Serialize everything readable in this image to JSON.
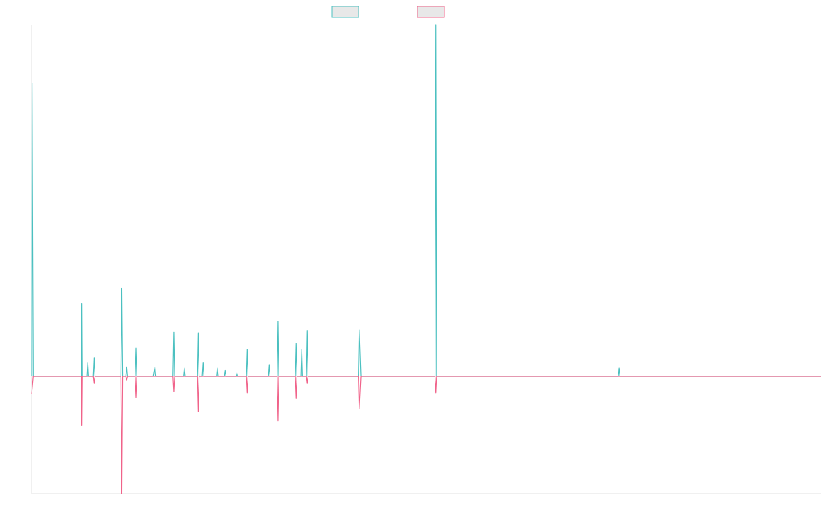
{
  "chart_data": {
    "type": "line",
    "title": "",
    "xlabel": "",
    "ylabel": "",
    "xlim": [
      0,
      1000
    ],
    "ylim": [
      -100,
      300
    ],
    "grid": false,
    "legend_position": "top-center",
    "series": [
      {
        "color": "#4bc0c0",
        "swatch_fill": "#e8e8e8",
        "points": [
          [
            0,
            0
          ],
          [
            0.5,
            250
          ],
          [
            2,
            0
          ],
          [
            25,
            0
          ],
          [
            63,
            0
          ],
          [
            63.5,
            62
          ],
          [
            64,
            0
          ],
          [
            70,
            0
          ],
          [
            71,
            12
          ],
          [
            72,
            0
          ],
          [
            78,
            0
          ],
          [
            79,
            16
          ],
          [
            80,
            0
          ],
          [
            113,
            0
          ],
          [
            114,
            75
          ],
          [
            115,
            0
          ],
          [
            119,
            0
          ],
          [
            120,
            8
          ],
          [
            121,
            0
          ],
          [
            131,
            0
          ],
          [
            132,
            24
          ],
          [
            133,
            0
          ],
          [
            154,
            0
          ],
          [
            156,
            8
          ],
          [
            157,
            0
          ],
          [
            179,
            0
          ],
          [
            180,
            38
          ],
          [
            181,
            0
          ],
          [
            192,
            0
          ],
          [
            193,
            7
          ],
          [
            194,
            0
          ],
          [
            210,
            0
          ],
          [
            211,
            37
          ],
          [
            212,
            0
          ],
          [
            216,
            0
          ],
          [
            217,
            12
          ],
          [
            218,
            0
          ],
          [
            234,
            0
          ],
          [
            235,
            7
          ],
          [
            236,
            0
          ],
          [
            244,
            0
          ],
          [
            245,
            5
          ],
          [
            246,
            0
          ],
          [
            259,
            0
          ],
          [
            260,
            3
          ],
          [
            261,
            0
          ],
          [
            272,
            0
          ],
          [
            273,
            23
          ],
          [
            274,
            0
          ],
          [
            300,
            0
          ],
          [
            301,
            10
          ],
          [
            302,
            0
          ],
          [
            311,
            0
          ],
          [
            312,
            47
          ],
          [
            313,
            0
          ],
          [
            334,
            0
          ],
          [
            335,
            28
          ],
          [
            336,
            0
          ],
          [
            341,
            0
          ],
          [
            342,
            23
          ],
          [
            343,
            0
          ],
          [
            348,
            0
          ],
          [
            349,
            39
          ],
          [
            350,
            0
          ],
          [
            414,
            0
          ],
          [
            415,
            40
          ],
          [
            417,
            0
          ],
          [
            511,
            0
          ],
          [
            512,
            300
          ],
          [
            513,
            0
          ],
          [
            743,
            0
          ],
          [
            744,
            7
          ],
          [
            745,
            0
          ],
          [
            1000,
            0
          ]
        ]
      },
      {
        "color": "#f0638a",
        "swatch_fill": "#e8e8e8",
        "points": [
          [
            0,
            -15
          ],
          [
            2,
            0
          ],
          [
            63,
            0
          ],
          [
            63.5,
            -42
          ],
          [
            64,
            0
          ],
          [
            78,
            0
          ],
          [
            79,
            -6
          ],
          [
            80,
            0
          ],
          [
            113,
            0
          ],
          [
            114,
            -100
          ],
          [
            115,
            0
          ],
          [
            119,
            0
          ],
          [
            120,
            -3
          ],
          [
            121,
            0
          ],
          [
            131,
            0
          ],
          [
            132,
            -18
          ],
          [
            133,
            0
          ],
          [
            179,
            0
          ],
          [
            180,
            -13
          ],
          [
            181,
            0
          ],
          [
            210,
            0
          ],
          [
            211,
            -30
          ],
          [
            212,
            0
          ],
          [
            272,
            0
          ],
          [
            273,
            -14
          ],
          [
            274,
            0
          ],
          [
            311,
            0
          ],
          [
            312,
            -38
          ],
          [
            313,
            0
          ],
          [
            334,
            0
          ],
          [
            335,
            -19
          ],
          [
            336,
            0
          ],
          [
            348,
            0
          ],
          [
            349,
            -6
          ],
          [
            350,
            0
          ],
          [
            414,
            0
          ],
          [
            415,
            -28
          ],
          [
            417,
            0
          ],
          [
            511,
            0
          ],
          [
            512,
            -14
          ],
          [
            513,
            0
          ],
          [
            1000,
            0
          ]
        ]
      }
    ]
  }
}
